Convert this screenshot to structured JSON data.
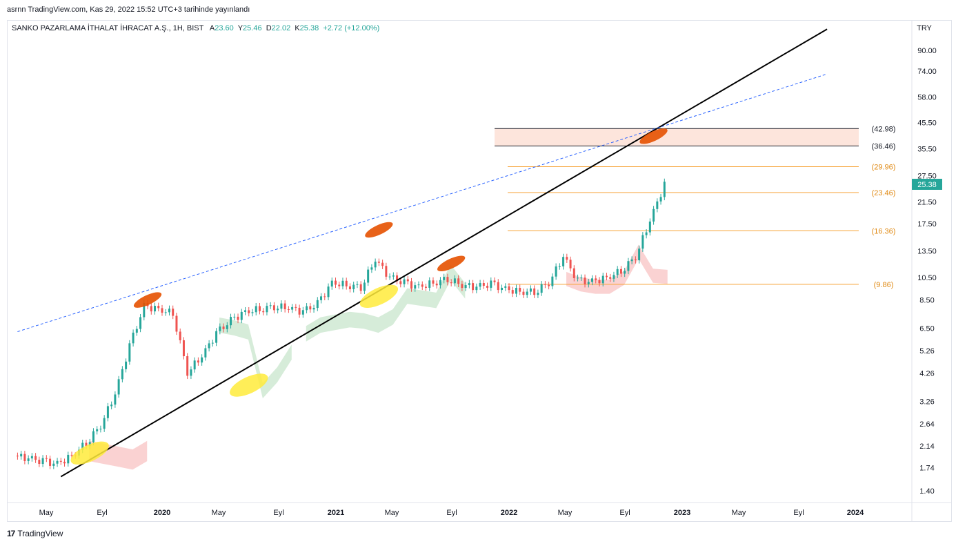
{
  "published_line": "asrnn TradingView.com, Kas 29, 2022 15:52 UTC+3 tarihinde yayınlandı",
  "legend": {
    "symbol": "SANKO PAZARLAMA İTHALAT İHRACAT A.Ş., 1H, BIST",
    "open_label": "A",
    "open_value": "23.60",
    "high_label": "Y",
    "high_value": "25.46",
    "low_label": "D",
    "low_value": "22.02",
    "close_label": "K",
    "close_value": "25.38",
    "change": "+2.72 (+12.00%)"
  },
  "brand": {
    "mark": "17",
    "name": "TradingView"
  },
  "colors": {
    "up": "#26a69a",
    "down": "#ef5350",
    "fib": "#f7a234",
    "zone_fill": "#fde5dc",
    "trend": "#000000",
    "dashed": "#2962ff",
    "kumo_bull": "#cfe9d2",
    "kumo_bear": "#f9caca",
    "price_badge": "#26a69a"
  },
  "chart_data": {
    "type": "candlestick",
    "symbol": "SANKO PAZARLAMA İTHALAT İHRACAT A.Ş.",
    "currency": "TRY",
    "y_scale": "log",
    "ylim": [
      1.25,
      120
    ],
    "y_ticks": [
      "90.00",
      "74.00",
      "58.00",
      "45.50",
      "35.50",
      "27.50",
      "21.50",
      "17.50",
      "13.50",
      "10.50",
      "8.50",
      "6.50",
      "5.26",
      "4.26",
      "3.26",
      "2.64",
      "2.14",
      "1.74",
      "1.40"
    ],
    "x_ticks": [
      "May",
      "Eyl",
      "2020",
      "May",
      "Eyl",
      "2021",
      "May",
      "Eyl",
      "2022",
      "May",
      "Eyl",
      "2023",
      "May",
      "Eyl",
      "2024"
    ],
    "x_range": [
      "2019-02",
      "2024-05"
    ],
    "last_price": "25.38",
    "horizontal_levels": [
      {
        "label": "(42.98)",
        "value": 42.98,
        "style": "black"
      },
      {
        "label": "(36.46)",
        "value": 36.46,
        "style": "black"
      },
      {
        "label": "(29.96)",
        "value": 29.96,
        "style": "fib"
      },
      {
        "label": "(23.46)",
        "value": 23.46,
        "style": "fib"
      },
      {
        "label": "(16.36)",
        "value": 16.36,
        "style": "fib"
      },
      {
        "label": "(9.86)",
        "value": 9.86,
        "style": "fib"
      }
    ],
    "zone": {
      "from": 36.46,
      "to": 42.98,
      "start": "2021-12"
    },
    "trendlines": [
      {
        "style": "solid",
        "from": {
          "t": "2019-06",
          "v": 1.6
        },
        "to": {
          "t": "2023-11",
          "v": 110
        }
      },
      {
        "style": "dashed",
        "from": {
          "t": "2019-03",
          "v": 6.3
        },
        "to": {
          "t": "2023-11",
          "v": 72
        }
      }
    ],
    "highlights": [
      {
        "color": "yellow",
        "t": "2019-08",
        "v": 2.0
      },
      {
        "color": "yellow",
        "t": "2020-07",
        "v": 3.8
      },
      {
        "color": "yellow",
        "t": "2021-04",
        "v": 8.8
      },
      {
        "color": "orange",
        "t": "2019-12",
        "v": 8.5
      },
      {
        "color": "orange",
        "t": "2021-04",
        "v": 16.5
      },
      {
        "color": "orange",
        "t": "2021-09",
        "v": 12.0
      },
      {
        "color": "orange",
        "t": "2022-11",
        "v": 40.0
      }
    ],
    "series": [
      {
        "name": "",
        "points": [
          {
            "t": "2019-03",
            "v": 1.95
          },
          {
            "t": "2019-04",
            "v": 1.9
          },
          {
            "t": "2019-05",
            "v": 1.85
          },
          {
            "t": "2019-06",
            "v": 1.8
          },
          {
            "t": "2019-07",
            "v": 1.95
          },
          {
            "t": "2019-08",
            "v": 2.2
          },
          {
            "t": "2019-09",
            "v": 2.6
          },
          {
            "t": "2019-10",
            "v": 3.5
          },
          {
            "t": "2019-11",
            "v": 5.5
          },
          {
            "t": "2019-12",
            "v": 8.0
          },
          {
            "t": "2020-01",
            "v": 7.8
          },
          {
            "t": "2020-02",
            "v": 7.5
          },
          {
            "t": "2020-03",
            "v": 4.3
          },
          {
            "t": "2020-04",
            "v": 5.0
          },
          {
            "t": "2020-05",
            "v": 6.2
          },
          {
            "t": "2020-06",
            "v": 7.0
          },
          {
            "t": "2020-07",
            "v": 7.6
          },
          {
            "t": "2020-08",
            "v": 7.8
          },
          {
            "t": "2020-09",
            "v": 8.0
          },
          {
            "t": "2020-10",
            "v": 7.9
          },
          {
            "t": "2020-11",
            "v": 7.6
          },
          {
            "t": "2020-12",
            "v": 8.2
          },
          {
            "t": "2021-01",
            "v": 10.0
          },
          {
            "t": "2021-02",
            "v": 9.8
          },
          {
            "t": "2021-03",
            "v": 9.6
          },
          {
            "t": "2021-04",
            "v": 12.5
          },
          {
            "t": "2021-05",
            "v": 10.5
          },
          {
            "t": "2021-06",
            "v": 10.0
          },
          {
            "t": "2021-07",
            "v": 9.6
          },
          {
            "t": "2021-08",
            "v": 10.0
          },
          {
            "t": "2021-09",
            "v": 10.4
          },
          {
            "t": "2021-10",
            "v": 9.8
          },
          {
            "t": "2021-11",
            "v": 9.6
          },
          {
            "t": "2021-12",
            "v": 9.9
          },
          {
            "t": "2022-01",
            "v": 9.4
          },
          {
            "t": "2022-02",
            "v": 9.2
          },
          {
            "t": "2022-03",
            "v": 9.2
          },
          {
            "t": "2022-04",
            "v": 10.0
          },
          {
            "t": "2022-05",
            "v": 12.8
          },
          {
            "t": "2022-06",
            "v": 10.2
          },
          {
            "t": "2022-07",
            "v": 10.1
          },
          {
            "t": "2022-08",
            "v": 10.5
          },
          {
            "t": "2022-09",
            "v": 11.2
          },
          {
            "t": "2022-10",
            "v": 12.8
          },
          {
            "t": "2022-11",
            "v": 18.0
          },
          {
            "t": "2022-12",
            "v": 25.38
          }
        ]
      }
    ]
  }
}
